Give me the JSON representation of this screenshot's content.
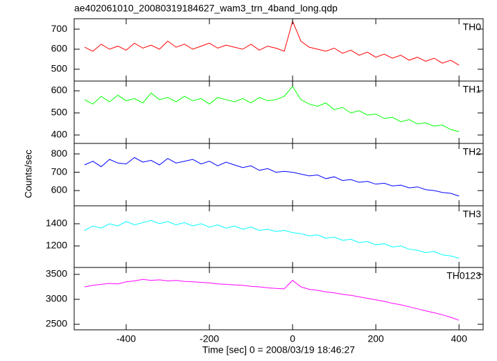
{
  "title": "ae402061010_20080319184627_wam3_trn_4band_long.qdp",
  "ylabel": "Counts/sec",
  "xlabel": "Time [sec] 0 = 2008/03/19 18:46:27",
  "chart_data": [
    {
      "type": "line",
      "xlim": [
        -525,
        458
      ],
      "ylim": [
        441,
        752
      ],
      "yticks": [
        500,
        600,
        700
      ],
      "x": [
        -500,
        -480,
        -460,
        -440,
        -420,
        -400,
        -380,
        -360,
        -340,
        -320,
        -300,
        -280,
        -260,
        -240,
        -220,
        -200,
        -180,
        -160,
        -140,
        -120,
        -100,
        -80,
        -60,
        -40,
        -20,
        0,
        20,
        40,
        60,
        80,
        100,
        120,
        140,
        160,
        180,
        200,
        220,
        240,
        260,
        280,
        300,
        320,
        340,
        360,
        380,
        400
      ],
      "series": [
        {
          "name": "TH0",
          "color": "#ff0000",
          "values": [
            610,
            590,
            625,
            600,
            615,
            595,
            630,
            605,
            620,
            600,
            640,
            610,
            625,
            600,
            615,
            630,
            605,
            620,
            610,
            600,
            625,
            595,
            615,
            605,
            590,
            740,
            640,
            610,
            600,
            590,
            605,
            580,
            595,
            570,
            585,
            560,
            575,
            555,
            570,
            545,
            560,
            540,
            555,
            530,
            545,
            520
          ]
        }
      ]
    },
    {
      "type": "line",
      "xlim": [
        -525,
        458
      ],
      "ylim": [
        362,
        644
      ],
      "yticks": [
        400,
        500,
        600
      ],
      "x": [
        -500,
        -480,
        -460,
        -440,
        -420,
        -400,
        -380,
        -360,
        -340,
        -320,
        -300,
        -280,
        -260,
        -240,
        -220,
        -200,
        -180,
        -160,
        -140,
        -120,
        -100,
        -80,
        -60,
        -40,
        -20,
        0,
        20,
        40,
        60,
        80,
        100,
        120,
        140,
        160,
        180,
        200,
        220,
        240,
        260,
        280,
        300,
        320,
        340,
        360,
        380,
        400
      ],
      "series": [
        {
          "name": "TH1",
          "color": "#00ff00",
          "values": [
            560,
            540,
            575,
            550,
            580,
            555,
            565,
            545,
            590,
            560,
            570,
            550,
            575,
            555,
            565,
            540,
            570,
            560,
            550,
            565,
            545,
            570,
            555,
            560,
            575,
            620,
            560,
            540,
            530,
            545,
            515,
            525,
            500,
            510,
            490,
            495,
            475,
            480,
            460,
            470,
            450,
            455,
            440,
            445,
            425,
            415
          ]
        }
      ]
    },
    {
      "type": "line",
      "xlim": [
        -525,
        458
      ],
      "ylim": [
        517,
        857
      ],
      "yticks": [
        600,
        700,
        800
      ],
      "x": [
        -500,
        -480,
        -460,
        -440,
        -420,
        -400,
        -380,
        -360,
        -340,
        -320,
        -300,
        -280,
        -260,
        -240,
        -220,
        -200,
        -180,
        -160,
        -140,
        -120,
        -100,
        -80,
        -60,
        -40,
        -20,
        0,
        20,
        40,
        60,
        80,
        100,
        120,
        140,
        160,
        180,
        200,
        220,
        240,
        260,
        280,
        300,
        320,
        340,
        360,
        380,
        400
      ],
      "series": [
        {
          "name": "TH2",
          "color": "#0000ff",
          "values": [
            740,
            760,
            730,
            770,
            750,
            745,
            780,
            755,
            765,
            740,
            775,
            750,
            760,
            770,
            745,
            760,
            735,
            755,
            740,
            725,
            735,
            710,
            720,
            700,
            705,
            700,
            690,
            680,
            685,
            665,
            675,
            655,
            660,
            645,
            650,
            635,
            640,
            625,
            630,
            615,
            620,
            605,
            600,
            590,
            585,
            570
          ]
        }
      ]
    },
    {
      "type": "line",
      "xlim": [
        -525,
        458
      ],
      "ylim": [
        1006,
        1562
      ],
      "yticks": [
        1200,
        1400
      ],
      "x": [
        -500,
        -480,
        -460,
        -440,
        -420,
        -400,
        -380,
        -360,
        -340,
        -320,
        -300,
        -280,
        -260,
        -240,
        -220,
        -200,
        -180,
        -160,
        -140,
        -120,
        -100,
        -80,
        -60,
        -40,
        -20,
        0,
        20,
        40,
        60,
        80,
        100,
        120,
        140,
        160,
        180,
        200,
        220,
        240,
        260,
        280,
        300,
        320,
        340,
        360,
        380,
        400
      ],
      "series": [
        {
          "name": "TH3",
          "color": "#00ffff",
          "values": [
            1340,
            1380,
            1360,
            1400,
            1380,
            1420,
            1390,
            1410,
            1430,
            1400,
            1420,
            1390,
            1410,
            1380,
            1400,
            1370,
            1390,
            1360,
            1380,
            1350,
            1370,
            1340,
            1350,
            1330,
            1340,
            1320,
            1310,
            1290,
            1300,
            1270,
            1280,
            1250,
            1260,
            1230,
            1240,
            1210,
            1220,
            1190,
            1200,
            1170,
            1160,
            1140,
            1150,
            1120,
            1110,
            1090
          ]
        }
      ]
    },
    {
      "type": "line",
      "xlim": [
        -525,
        458
      ],
      "ylim": [
        2389,
        3639
      ],
      "yticks": [
        2500,
        3000,
        3500
      ],
      "xticks": [
        -400,
        -200,
        0,
        200,
        400
      ],
      "x": [
        -500,
        -480,
        -460,
        -440,
        -420,
        -400,
        -380,
        -360,
        -340,
        -320,
        -300,
        -280,
        -260,
        -240,
        -220,
        -200,
        -180,
        -160,
        -140,
        -120,
        -100,
        -80,
        -60,
        -40,
        -20,
        0,
        20,
        40,
        60,
        80,
        100,
        120,
        140,
        160,
        180,
        200,
        220,
        240,
        260,
        280,
        300,
        320,
        340,
        360,
        380,
        400
      ],
      "series": [
        {
          "name": "TH0123",
          "color": "#ff00ff",
          "values": [
            3250,
            3280,
            3300,
            3320,
            3310,
            3350,
            3370,
            3400,
            3380,
            3390,
            3370,
            3380,
            3360,
            3350,
            3340,
            3330,
            3310,
            3300,
            3290,
            3280,
            3260,
            3250,
            3230,
            3220,
            3210,
            3380,
            3250,
            3200,
            3180,
            3150,
            3130,
            3100,
            3080,
            3050,
            3020,
            2990,
            2960,
            2920,
            2890,
            2850,
            2810,
            2770,
            2730,
            2690,
            2640,
            2580
          ]
        }
      ]
    }
  ]
}
